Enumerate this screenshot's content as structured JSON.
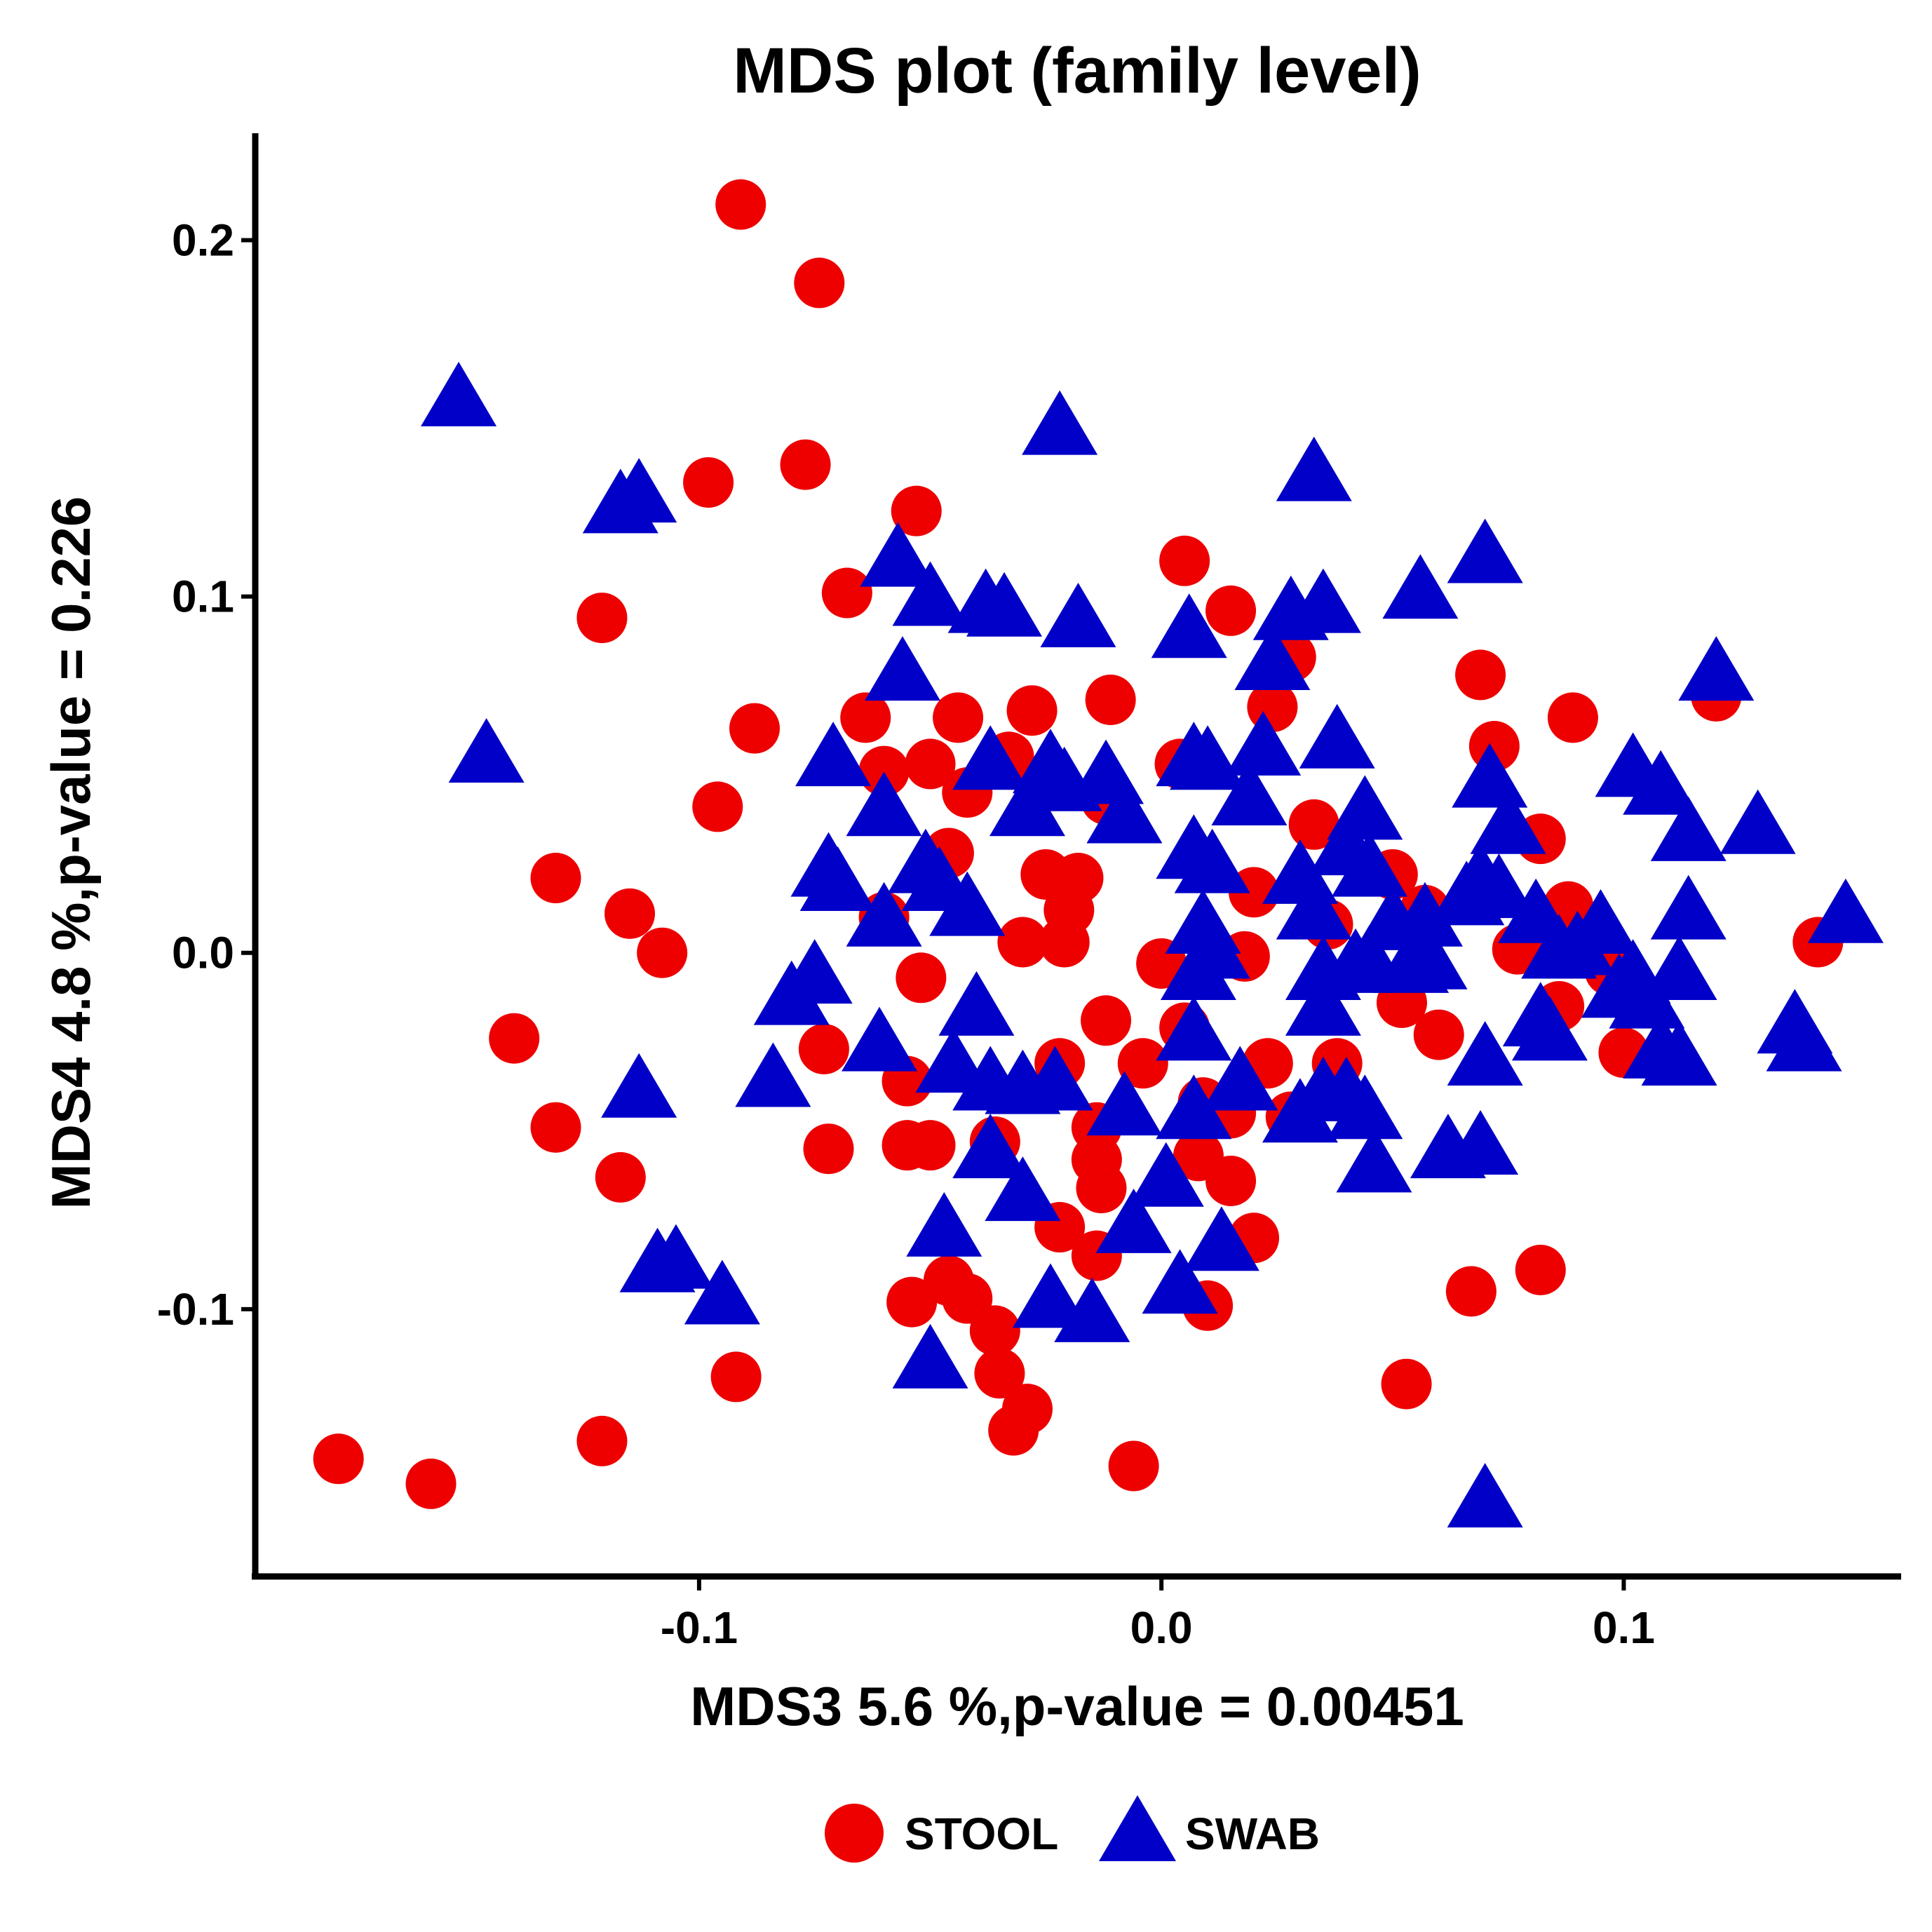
{
  "chart_data": {
    "type": "scatter",
    "title": "MDS plot (family level)",
    "xlabel": "MDS3   5.6 %,p-value =  0.00451",
    "ylabel": "MDS4   4.8 %,p-value =  0.226",
    "xlim": [
      -0.196,
      0.16
    ],
    "ylim": [
      -0.175,
      0.23
    ],
    "x_ticks": [
      {
        "value": -0.1,
        "label": "-0.1"
      },
      {
        "value": 0.0,
        "label": "0.0"
      },
      {
        "value": 0.1,
        "label": "0.1"
      }
    ],
    "y_ticks": [
      {
        "value": -0.1,
        "label": "-0.1"
      },
      {
        "value": 0.0,
        "label": "0.0"
      },
      {
        "value": 0.1,
        "label": "0.1"
      },
      {
        "value": 0.2,
        "label": "0.2"
      }
    ],
    "grid": false,
    "legend_position": "bottom",
    "series": [
      {
        "name": "STOOL",
        "color": "#ee0000",
        "marker": "circle",
        "points": [
          [
            -0.091,
            0.21
          ],
          [
            -0.074,
            0.188
          ],
          [
            -0.077,
            0.137
          ],
          [
            -0.098,
            0.132
          ],
          [
            -0.053,
            0.124
          ],
          [
            -0.068,
            0.101
          ],
          [
            -0.121,
            0.094
          ],
          [
            0.005,
            0.11
          ],
          [
            0.015,
            0.096
          ],
          [
            -0.088,
            0.063
          ],
          [
            -0.096,
            0.041
          ],
          [
            -0.064,
            0.066
          ],
          [
            -0.044,
            0.066
          ],
          [
            -0.028,
            0.068
          ],
          [
            -0.011,
            0.071
          ],
          [
            0.028,
            0.083
          ],
          [
            0.069,
            0.078
          ],
          [
            0.072,
            0.058
          ],
          [
            0.089,
            0.066
          ],
          [
            0.12,
            0.072
          ],
          [
            -0.131,
            0.021
          ],
          [
            -0.115,
            0.011
          ],
          [
            -0.108,
            0.0
          ],
          [
            -0.14,
            -0.024
          ],
          [
            -0.131,
            -0.049
          ],
          [
            -0.117,
            -0.063
          ],
          [
            -0.092,
            -0.119
          ],
          [
            -0.121,
            -0.137
          ],
          [
            -0.178,
            -0.142
          ],
          [
            -0.158,
            -0.149
          ],
          [
            -0.06,
            0.051
          ],
          [
            -0.05,
            0.053
          ],
          [
            -0.042,
            0.045
          ],
          [
            -0.033,
            0.055
          ],
          [
            -0.012,
            0.043
          ],
          [
            0.004,
            0.053
          ],
          [
            0.024,
            0.069
          ],
          [
            0.033,
            0.036
          ],
          [
            0.082,
            0.032
          ],
          [
            0.088,
            0.013
          ],
          [
            -0.046,
            0.028
          ],
          [
            -0.025,
            0.022
          ],
          [
            -0.018,
            0.021
          ],
          [
            -0.02,
            0.012
          ],
          [
            -0.06,
            0.01
          ],
          [
            -0.03,
            0.003
          ],
          [
            -0.021,
            0.003
          ],
          [
            0.0,
            -0.003
          ],
          [
            0.018,
            -0.001
          ],
          [
            0.02,
            0.017
          ],
          [
            0.036,
            0.008
          ],
          [
            0.05,
            0.022
          ],
          [
            0.057,
            0.012
          ],
          [
            0.052,
            -0.014
          ],
          [
            0.038,
            -0.031
          ],
          [
            0.06,
            -0.023
          ],
          [
            0.1,
            -0.028
          ],
          [
            0.086,
            -0.015
          ],
          [
            0.077,
            0.001
          ],
          [
            0.142,
            0.003
          ],
          [
            0.097,
            -0.005
          ],
          [
            -0.052,
            -0.007
          ],
          [
            -0.073,
            -0.027
          ],
          [
            -0.055,
            -0.036
          ],
          [
            -0.072,
            -0.055
          ],
          [
            -0.055,
            -0.054
          ],
          [
            -0.05,
            -0.054
          ],
          [
            -0.036,
            -0.053
          ],
          [
            -0.022,
            -0.031
          ],
          [
            -0.012,
            -0.019
          ],
          [
            -0.004,
            -0.031
          ],
          [
            0.005,
            -0.021
          ],
          [
            0.023,
            -0.031
          ],
          [
            0.009,
            -0.042
          ],
          [
            0.015,
            -0.045
          ],
          [
            0.028,
            -0.046
          ],
          [
            -0.014,
            -0.049
          ],
          [
            0.008,
            -0.057
          ],
          [
            -0.014,
            -0.058
          ],
          [
            -0.013,
            -0.066
          ],
          [
            0.015,
            -0.064
          ],
          [
            0.02,
            -0.08
          ],
          [
            -0.022,
            -0.077
          ],
          [
            -0.014,
            -0.085
          ],
          [
            -0.054,
            -0.098
          ],
          [
            -0.046,
            -0.092
          ],
          [
            -0.042,
            -0.097
          ],
          [
            -0.036,
            -0.106
          ],
          [
            -0.035,
            -0.118
          ],
          [
            -0.029,
            -0.128
          ],
          [
            -0.032,
            -0.134
          ],
          [
            0.01,
            -0.099
          ],
          [
            -0.006,
            -0.144
          ],
          [
            0.053,
            -0.121
          ],
          [
            0.067,
            -0.095
          ],
          [
            0.082,
            -0.089
          ]
        ]
      },
      {
        "name": "SWAB",
        "color": "#0000c8",
        "marker": "triangle",
        "points": [
          [
            -0.152,
            0.155
          ],
          [
            -0.113,
            0.128
          ],
          [
            -0.117,
            0.125
          ],
          [
            -0.022,
            0.147
          ],
          [
            0.033,
            0.134
          ],
          [
            0.07,
            0.111
          ],
          [
            -0.057,
            0.11
          ],
          [
            -0.05,
            0.099
          ],
          [
            -0.038,
            0.097
          ],
          [
            -0.034,
            0.096
          ],
          [
            -0.018,
            0.093
          ],
          [
            0.006,
            0.09
          ],
          [
            0.028,
            0.095
          ],
          [
            0.035,
            0.097
          ],
          [
            0.056,
            0.101
          ],
          [
            0.12,
            0.078
          ],
          [
            0.024,
            0.081
          ],
          [
            -0.056,
            0.078
          ],
          [
            -0.071,
            0.054
          ],
          [
            -0.037,
            0.053
          ],
          [
            -0.024,
            0.052
          ],
          [
            -0.021,
            0.047
          ],
          [
            -0.012,
            0.049
          ],
          [
            0.007,
            0.054
          ],
          [
            0.01,
            0.053
          ],
          [
            0.022,
            0.057
          ],
          [
            0.038,
            0.059
          ],
          [
            0.071,
            0.048
          ],
          [
            0.102,
            0.051
          ],
          [
            0.108,
            0.046
          ],
          [
            -0.146,
            0.055
          ],
          [
            -0.06,
            0.04
          ],
          [
            -0.029,
            0.04
          ],
          [
            0.019,
            0.043
          ],
          [
            0.044,
            0.039
          ],
          [
            -0.008,
            0.038
          ],
          [
            0.075,
            0.035
          ],
          [
            0.114,
            0.033
          ],
          [
            0.129,
            0.035
          ],
          [
            -0.072,
            0.023
          ],
          [
            -0.07,
            0.019
          ],
          [
            -0.051,
            0.024
          ],
          [
            -0.048,
            0.019
          ],
          [
            0.007,
            0.028
          ],
          [
            0.011,
            0.024
          ],
          [
            0.03,
            0.021
          ],
          [
            0.04,
            0.029
          ],
          [
            0.045,
            0.023
          ],
          [
            0.069,
            0.02
          ],
          [
            -0.06,
            0.009
          ],
          [
            -0.042,
            0.012
          ],
          [
            0.009,
            0.007
          ],
          [
            0.011,
            0.0
          ],
          [
            0.033,
            0.011
          ],
          [
            0.05,
            0.008
          ],
          [
            0.057,
            0.009
          ],
          [
            0.066,
            0.015
          ],
          [
            0.073,
            0.017
          ],
          [
            0.081,
            0.01
          ],
          [
            0.095,
            0.007
          ],
          [
            0.114,
            0.011
          ],
          [
            0.148,
            0.01
          ],
          [
            -0.075,
            -0.007
          ],
          [
            -0.08,
            -0.013
          ],
          [
            0.008,
            -0.006
          ],
          [
            0.035,
            -0.006
          ],
          [
            0.042,
            -0.004
          ],
          [
            0.045,
            -0.003
          ],
          [
            0.054,
            -0.004
          ],
          [
            0.058,
            -0.003
          ],
          [
            0.086,
            0.0
          ],
          [
            0.09,
            0.001
          ],
          [
            0.102,
            -0.007
          ],
          [
            0.112,
            -0.006
          ],
          [
            0.035,
            -0.016
          ],
          [
            0.099,
            -0.011
          ],
          [
            0.105,
            -0.014
          ],
          [
            -0.04,
            -0.016
          ],
          [
            -0.084,
            -0.036
          ],
          [
            -0.113,
            -0.039
          ],
          [
            -0.061,
            -0.026
          ],
          [
            -0.045,
            -0.032
          ],
          [
            -0.037,
            -0.037
          ],
          [
            -0.03,
            -0.038
          ],
          [
            -0.023,
            -0.037
          ],
          [
            0.007,
            -0.023
          ],
          [
            0.017,
            -0.037
          ],
          [
            0.03,
            -0.046
          ],
          [
            0.035,
            -0.04
          ],
          [
            0.04,
            -0.04
          ],
          [
            0.044,
            -0.045
          ],
          [
            0.082,
            -0.019
          ],
          [
            0.084,
            -0.023
          ],
          [
            0.07,
            -0.03
          ],
          [
            0.108,
            -0.028
          ],
          [
            0.112,
            -0.03
          ],
          [
            0.137,
            -0.021
          ],
          [
            0.139,
            -0.026
          ],
          [
            -0.008,
            -0.044
          ],
          [
            0.007,
            -0.045
          ],
          [
            -0.037,
            -0.056
          ],
          [
            -0.03,
            -0.068
          ],
          [
            0.001,
            -0.064
          ],
          [
            0.046,
            -0.06
          ],
          [
            0.062,
            -0.056
          ],
          [
            0.069,
            -0.055
          ],
          [
            -0.047,
            -0.078
          ],
          [
            -0.006,
            -0.077
          ],
          [
            0.013,
            -0.082
          ],
          [
            0.004,
            -0.094
          ],
          [
            -0.109,
            -0.088
          ],
          [
            -0.105,
            -0.087
          ],
          [
            -0.095,
            -0.097
          ],
          [
            -0.024,
            -0.098
          ],
          [
            -0.015,
            -0.102
          ],
          [
            -0.05,
            -0.115
          ],
          [
            0.07,
            -0.154
          ]
        ]
      }
    ]
  }
}
